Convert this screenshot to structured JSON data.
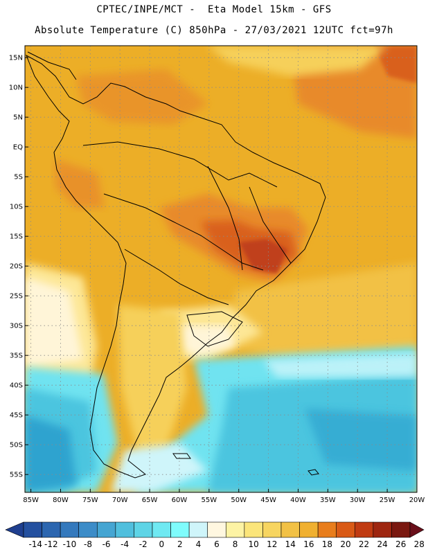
{
  "header": {
    "line1": "CPTEC/INPE/MCT -  Eta Model 15km - GFS",
    "line2": "Absolute Temperature (C) 850hPa - 27/03/2021 12UTC fct=97h"
  },
  "map": {
    "lat_labels": [
      "15N",
      "10N",
      "5N",
      "EQ",
      "5S",
      "10S",
      "15S",
      "20S",
      "25S",
      "30S",
      "35S",
      "40S",
      "45S",
      "50S",
      "55S"
    ],
    "lat_values": [
      15,
      10,
      5,
      0,
      -5,
      -10,
      -15,
      -20,
      -25,
      -30,
      -35,
      -40,
      -45,
      -50,
      -55
    ],
    "lon_labels": [
      "85W",
      "80W",
      "75W",
      "70W",
      "65W",
      "60W",
      "55W",
      "50W",
      "45W",
      "40W",
      "35W",
      "30W",
      "25W",
      "20W"
    ],
    "lon_values": [
      -85,
      -80,
      -75,
      -70,
      -65,
      -60,
      -55,
      -50,
      -45,
      -40,
      -35,
      -30,
      -25,
      -20
    ],
    "extent": {
      "lon_min": -86,
      "lon_max": -20,
      "lat_min": -58,
      "lat_max": 17
    },
    "field_colors": {
      "ocean_cold_deep": "#2fa3cf",
      "ocean_cold": "#4cc5df",
      "ocean_cool": "#6fe3f0",
      "ice": "#cff5fa",
      "mild": "#fff5d8",
      "light_yellow": "#fde796",
      "yellow": "#f6d05a",
      "gold": "#f0b43c",
      "orange": "#ecae27",
      "dark_orange": "#e88a2a",
      "red_orange": "#d9601d",
      "red": "#c0401a"
    }
  },
  "colorbar": {
    "labels": [
      "-14",
      "-12",
      "-10",
      "-8",
      "-6",
      "-4",
      "-2",
      "0",
      "2",
      "4",
      "6",
      "8",
      "10",
      "12",
      "14",
      "16",
      "18",
      "20",
      "22",
      "24",
      "26",
      "28"
    ],
    "colors": [
      "#1f3f8f",
      "#24509f",
      "#2c66b0",
      "#3479bd",
      "#3c8cc8",
      "#45a5d2",
      "#50bfdd",
      "#5ed4e6",
      "#6fe9f2",
      "#7ffcfc",
      "#cff5fa",
      "#fff7e0",
      "#fdf3a4",
      "#fbe57a",
      "#f7d560",
      "#f2c145",
      "#f0b030",
      "#e87d1c",
      "#d95a16",
      "#c03b12",
      "#9e2610",
      "#7a1810",
      "#6a0f1a"
    ]
  }
}
